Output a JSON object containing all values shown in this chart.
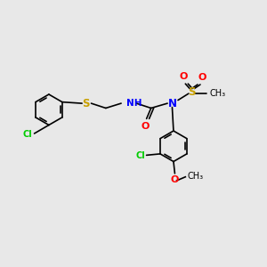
{
  "bg_color": "#e8e8e8",
  "bond_color": "#000000",
  "S_color": "#c8a000",
  "N_color": "#0000ff",
  "O_color": "#ff0000",
  "Cl_color": "#00cc00",
  "bond_width": 1.2,
  "figsize": [
    3.0,
    3.0
  ],
  "dpi": 100,
  "xlim": [
    0,
    10
  ],
  "ylim": [
    0,
    10
  ]
}
